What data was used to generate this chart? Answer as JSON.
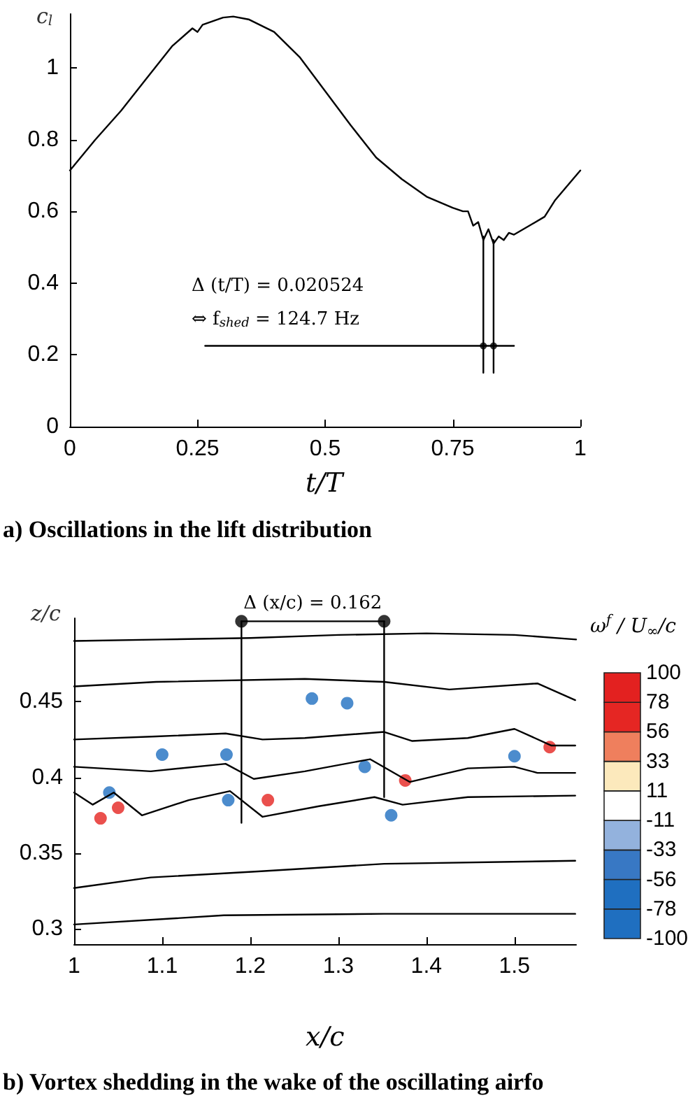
{
  "chart_data": [
    {
      "type": "line",
      "title": "a) Oscillations in the lift distribution",
      "xlabel": "t/T",
      "ylabel": "c$_{l}$",
      "xlim": [
        0,
        1
      ],
      "xticks": [
        0,
        0.25,
        0.5,
        0.75,
        1
      ],
      "ylim": [
        0,
        1.15
      ],
      "yticks": [
        0,
        0.2,
        0.4,
        0.6,
        0.8,
        1
      ],
      "grid": false,
      "marker": "none",
      "line_style": "solid",
      "annotations": [
        "Δ (t/T) = 0.020524",
        "⇔ f$_{shed}$ = 124.7 Hz"
      ],
      "series": [
        {
          "color": "#000000",
          "x": [
            0,
            0.05,
            0.1,
            0.15,
            0.2,
            0.24,
            0.25,
            0.26,
            0.3,
            0.32,
            0.35,
            0.4,
            0.45,
            0.5,
            0.55,
            0.6,
            0.65,
            0.7,
            0.75,
            0.77,
            0.78,
            0.79,
            0.8,
            0.81,
            0.82,
            0.83,
            0.84,
            0.85,
            0.86,
            0.87,
            0.9,
            0.93,
            0.95,
            1
          ],
          "values": [
            0.714,
            0.8,
            0.88,
            0.97,
            1.06,
            1.11,
            1.1,
            1.12,
            1.14,
            1.143,
            1.135,
            1.1,
            1.03,
            0.935,
            0.84,
            0.75,
            0.69,
            0.64,
            0.61,
            0.6,
            0.6,
            0.56,
            0.57,
            0.52,
            0.55,
            0.51,
            0.53,
            0.52,
            0.54,
            0.535,
            0.56,
            0.585,
            0.63,
            0.714
          ]
        },
        {
          "color": "#000000",
          "x": [
            0.265,
            0.87
          ],
          "values": [
            0.225,
            0.225
          ]
        },
        {
          "color": "#000000",
          "x": [
            0.81,
            0.81
          ],
          "values": [
            0.15,
            0.53
          ]
        },
        {
          "color": "#000000",
          "x": [
            0.83,
            0.83
          ],
          "values": [
            0.15,
            0.52
          ]
        },
        {
          "type": "scatter",
          "marker": "circle",
          "color": "#000000",
          "x": [
            0.81,
            0.83
          ],
          "values": [
            0.225,
            0.225
          ]
        }
      ]
    },
    {
      "type": "line",
      "title": "b) Vortex shedding in the wake of the oscillating airfo",
      "xlabel": "x/c",
      "ylabel": "z/c",
      "clabel": "ω$^{f}$ / U$_{∞}$/c",
      "clim": [
        -100,
        100
      ],
      "cticks": [
        -100,
        -78,
        -56,
        -33,
        -11,
        11,
        33,
        56,
        78,
        100
      ],
      "xlim": [
        1,
        1.57
      ],
      "xticks": [
        1,
        1.1,
        1.2,
        1.3,
        1.4,
        1.5
      ],
      "ylim": [
        0.29,
        0.505
      ],
      "yticks": [
        0.3,
        0.35,
        0.4,
        0.45
      ],
      "grid": false,
      "marker": "none",
      "line_style": "solid",
      "annotations": [
        {
          "text": "Δ (x/c) = 0.162",
          "x": 1.271,
          "y": 0.503
        }
      ],
      "series": [
        {
          "color": "#000000",
          "x": [
            1,
            1.1,
            1.2,
            1.3,
            1.4,
            1.5,
            1.57
          ],
          "values": [
            0.49,
            0.491,
            0.492,
            0.494,
            0.495,
            0.494,
            0.491
          ]
        },
        {
          "color": "#000000",
          "x": [
            1,
            1.093,
            1.262,
            1.352,
            1.426,
            1.526,
            1.569
          ],
          "values": [
            0.46,
            0.463,
            0.465,
            0.463,
            0.458,
            0.462,
            0.451
          ]
        },
        {
          "color": "#000000",
          "x": [
            1,
            1.093,
            1.172,
            1.214,
            1.262,
            1.352,
            1.384,
            1.447,
            1.5,
            1.542,
            1.569
          ],
          "values": [
            0.425,
            0.427,
            0.429,
            0.425,
            0.426,
            0.43,
            0.424,
            0.426,
            0.432,
            0.421,
            0.421
          ]
        },
        {
          "color": "#000000",
          "x": [
            1,
            1.087,
            1.172,
            1.204,
            1.262,
            1.336,
            1.381,
            1.447,
            1.5,
            1.526,
            1.569
          ],
          "values": [
            0.407,
            0.404,
            0.409,
            0.399,
            0.404,
            0.412,
            0.397,
            0.406,
            0.407,
            0.403,
            0.403
          ]
        },
        {
          "color": "#000000",
          "x": [
            1,
            1.021,
            1.045,
            1.077,
            1.13,
            1.177,
            1.214,
            1.278,
            1.341,
            1.373,
            1.447,
            1.569
          ],
          "values": [
            0.39,
            0.382,
            0.39,
            0.375,
            0.385,
            0.391,
            0.374,
            0.381,
            0.387,
            0.382,
            0.387,
            0.388
          ]
        },
        {
          "color": "#000000",
          "x": [
            1,
            1.087,
            1.209,
            1.352,
            1.569
          ],
          "values": [
            0.327,
            0.334,
            0.338,
            0.343,
            0.345
          ]
        },
        {
          "color": "#000000",
          "x": [
            1,
            1.17,
            1.352,
            1.569
          ],
          "values": [
            0.303,
            0.309,
            0.31,
            0.31
          ]
        },
        {
          "type": "scatter",
          "marker": "circle",
          "x": [
            1.03,
            1.05,
            1.22,
            1.376,
            1.54
          ],
          "values": [
            0.373,
            0.38,
            0.385,
            0.398,
            0.42
          ],
          "color": "#e52421"
        },
        {
          "type": "scatter",
          "marker": "circle",
          "x": [
            1.04,
            1.1,
            1.173,
            1.175,
            1.27,
            1.31,
            1.33,
            1.5,
            1.36
          ],
          "values": [
            0.39,
            0.415,
            0.415,
            0.385,
            0.452,
            0.449,
            0.407,
            0.414,
            0.375
          ],
          "color": "#1f6fc0"
        },
        {
          "color": "#000000",
          "x": [
            1.19,
            1.19
          ],
          "values": [
            0.37,
            0.503
          ]
        },
        {
          "color": "#000000",
          "x": [
            1.352,
            1.352
          ],
          "values": [
            0.387,
            0.503
          ]
        },
        {
          "color": "#000000",
          "x": [
            1.19,
            1.352
          ],
          "values": [
            0.503,
            0.503
          ]
        },
        {
          "type": "scatter",
          "marker": "circle",
          "color": "#000000",
          "x": [
            1.19,
            1.352
          ],
          "values": [
            0.503,
            0.503
          ]
        }
      ]
    }
  ]
}
